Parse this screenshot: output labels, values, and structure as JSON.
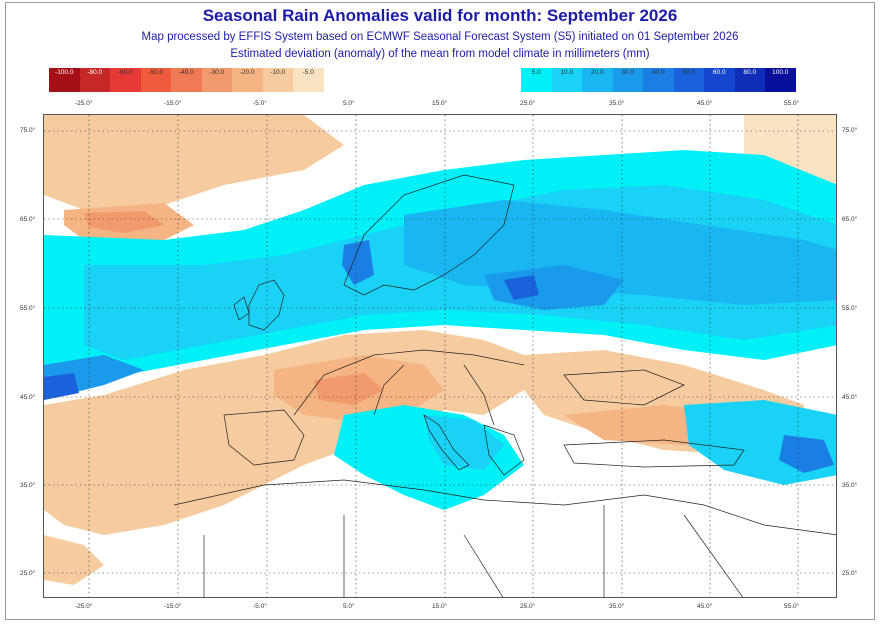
{
  "title": "Seasonal Rain Anomalies valid for month: September 2026",
  "subtitle_line1": "Map processed by EFFIS System based on ECMWF Seasonal Forecast System (S5) initiated on 01 September 2026",
  "subtitle_line2": "Estimated deviation (anomaly) of the mean from model climate in millimeters (mm)",
  "legend_negative": {
    "labels": [
      "-100.0",
      "-80.0",
      "-60.0",
      "-50.0",
      "-40.0",
      "-30.0",
      "-20.0",
      "-10.0",
      "-5.0"
    ],
    "colors": [
      "#a50f15",
      "#c62828",
      "#e53935",
      "#ef5b3c",
      "#f07a55",
      "#f29a6e",
      "#f4b483",
      "#f7cba0",
      "#fae3c2"
    ]
  },
  "legend_positive": {
    "labels": [
      "5.0",
      "10.0",
      "20.0",
      "30.0",
      "40.0",
      "50.0",
      "60.0",
      "80.0",
      "100.0"
    ],
    "colors": [
      "#00f0f8",
      "#19d2f5",
      "#1ab6f2",
      "#1b9aec",
      "#1a7ee4",
      "#1962dc",
      "#1446cf",
      "#0f2db9",
      "#08109b"
    ]
  },
  "top_lon_labels": [
    "-25.0°",
    "-15.0°",
    "-5.0°",
    "5.0°",
    "15.0°",
    "25.0°",
    "35.0°",
    "45.0°",
    "55.0°"
  ],
  "bottom_lon_labels": [
    "-25.0°",
    "-15.0°",
    "-5.0°",
    "5.0°",
    "15.0°",
    "25.0°",
    "35.0°",
    "45.0°",
    "55.0°"
  ],
  "left_lat_labels": [
    "75.0°",
    "65.0°",
    "55.0°",
    "45.0°",
    "35.0°",
    "25.0°"
  ],
  "right_lat_labels": [
    "75.0°",
    "65.0°",
    "55.0°",
    "45.0°",
    "35.0°",
    "25.0°"
  ]
}
